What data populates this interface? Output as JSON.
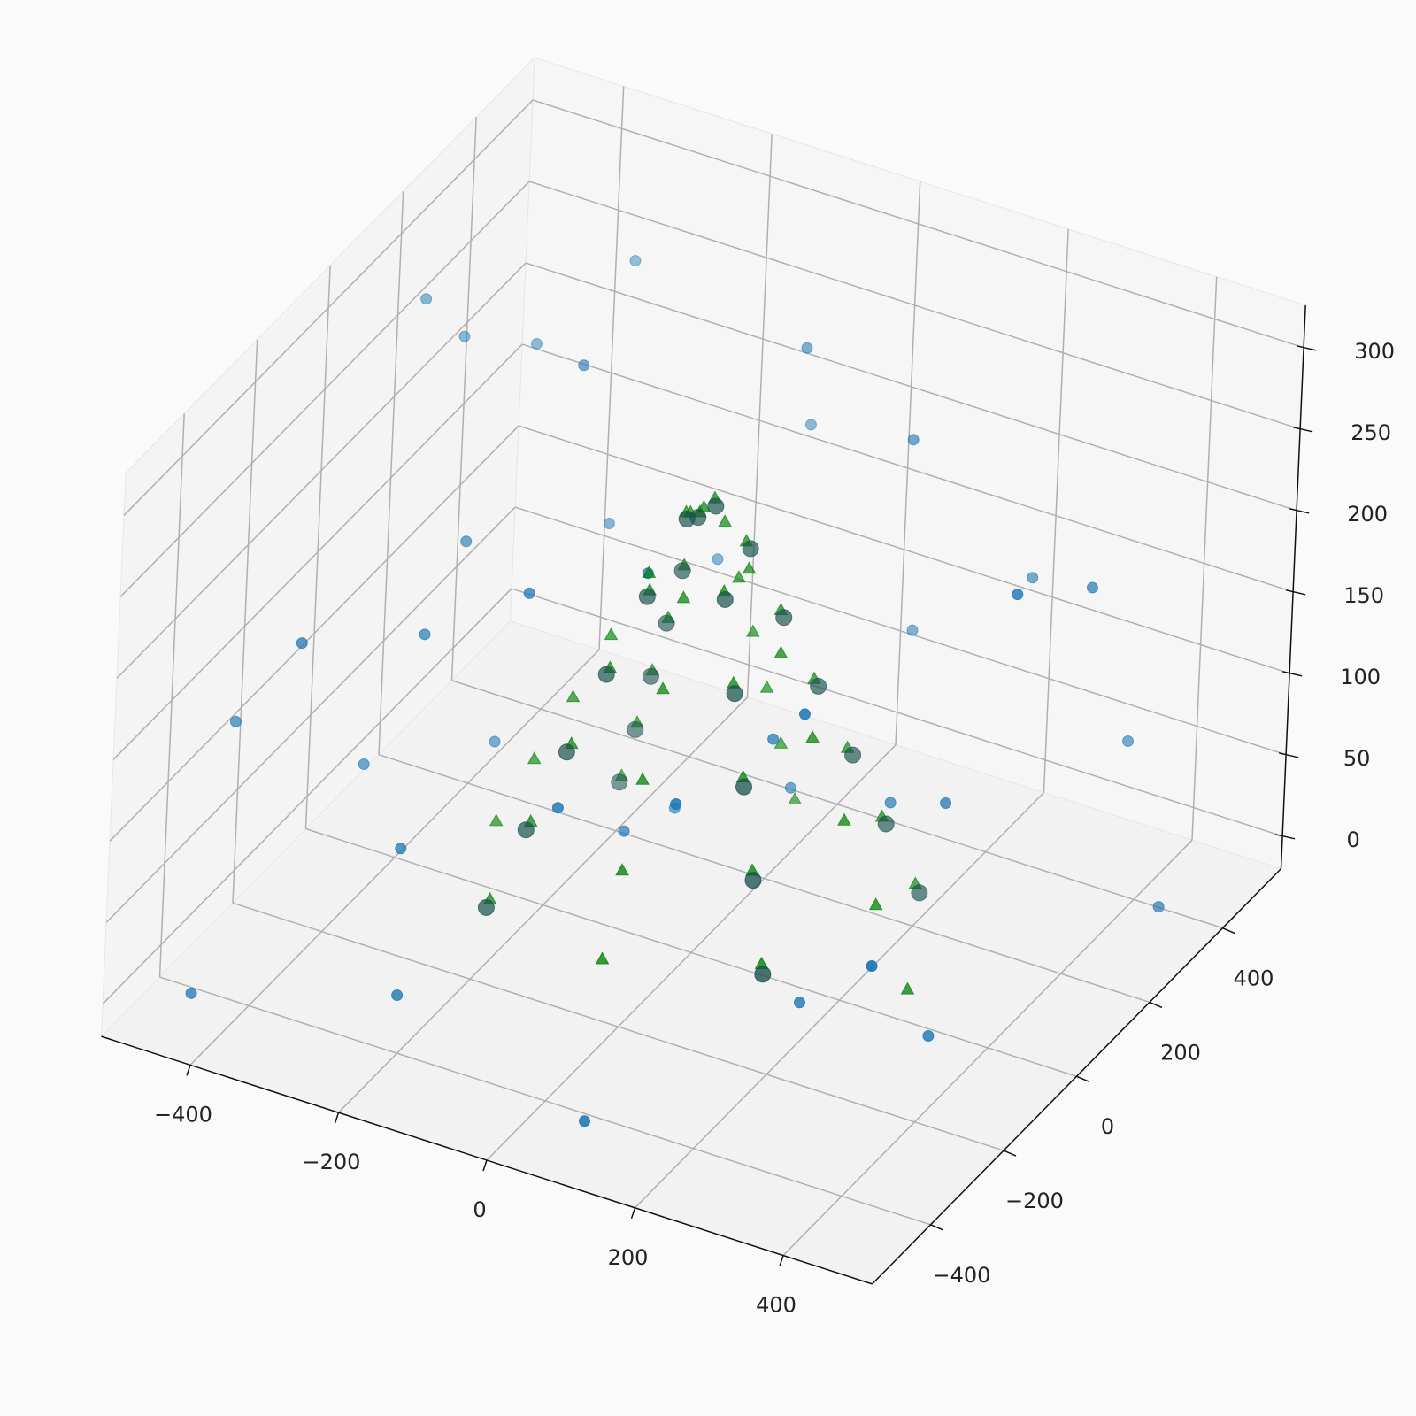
{
  "chart_data": {
    "type": "scatter3d",
    "xlim": [
      -520,
      520
    ],
    "ylim": [
      -560,
      560
    ],
    "zlim": [
      -20,
      326
    ],
    "xticks": [
      {
        "value": -400,
        "label": "−400"
      },
      {
        "value": -200,
        "label": "−200"
      },
      0,
      200,
      400
    ],
    "yticks": [
      {
        "value": -400,
        "label": "−400"
      },
      {
        "value": -200,
        "label": "−200"
      },
      0,
      200,
      400
    ],
    "zticks": [
      0,
      50,
      100,
      150,
      200,
      250,
      300
    ],
    "grid": true,
    "series": [
      {
        "marker": "o",
        "size": 6,
        "color": "#1f77b4",
        "x": [
          -480,
          -460,
          -430,
          -400,
          -380,
          -350,
          -320,
          -300,
          -280,
          -250,
          -230,
          -200,
          -180,
          -150,
          -120,
          -100,
          -80,
          -50,
          -20,
          0,
          30,
          60,
          90,
          120,
          150,
          180,
          210,
          240,
          270,
          300,
          330,
          360,
          390,
          420,
          450,
          480,
          -440,
          100,
          460,
          -300
        ],
        "y": [
          -300,
          150,
          200,
          -100,
          300,
          -400,
          100,
          400,
          -200,
          250,
          -350,
          50,
          -450,
          350,
          -250,
          150,
          450,
          -100,
          300,
          -400,
          200,
          -300,
          400,
          -50,
          250,
          -450,
          100,
          -200,
          350,
          -350,
          0,
          450,
          -150,
          200,
          -450,
          300,
          -480,
          -500,
          -100,
          -50
        ],
        "z": [
          120,
          280,
          250,
          60,
          230,
          210,
          40,
          270,
          180,
          150,
          90,
          300,
          30,
          120,
          240,
          20,
          190,
          70,
          280,
          160,
          40,
          290,
          100,
          140,
          260,
          200,
          80,
          30,
          170,
          250,
          120,
          60,
          20,
          220,
          140,
          10,
          0,
          5,
          290,
          200
        ]
      },
      {
        "marker": "^",
        "size": 7,
        "color": "#008000",
        "x": [
          290,
          201,
          0,
          -192,
          -267,
          -185,
          0,
          176,
          243,
          168,
          0,
          -159,
          -220,
          -151,
          0,
          143,
          196,
          134,
          0,
          -127,
          -172,
          -117,
          0,
          110,
          149,
          101,
          0,
          -93,
          -125,
          -85,
          0,
          76,
          102,
          68,
          0,
          -59,
          -78,
          -52,
          0,
          43,
          55,
          34,
          0,
          -26,
          -32,
          -18,
          0,
          10
        ],
        "y": [
          0,
          201,
          278,
          192,
          0,
          -185,
          -254,
          -176,
          0,
          168,
          231,
          159,
          0,
          -151,
          -208,
          -143,
          0,
          134,
          184,
          127,
          0,
          -117,
          -161,
          -110,
          0,
          101,
          137,
          93,
          0,
          -85,
          -114,
          -76,
          0,
          68,
          90,
          59,
          0,
          -52,
          -66,
          -43,
          0,
          34,
          43,
          26,
          0,
          -18,
          -19,
          -10
        ],
        "z": [
          0,
          6,
          11,
          17,
          22,
          28,
          34,
          39,
          45,
          50,
          56,
          62,
          67,
          73,
          78,
          84,
          90,
          95,
          101,
          106,
          112,
          118,
          123,
          129,
          134,
          140,
          146,
          151,
          157,
          162,
          168,
          174,
          179,
          185,
          190,
          196,
          202,
          207,
          213,
          218,
          224,
          230,
          235,
          241,
          246,
          252,
          258,
          263
        ]
      },
      {
        "marker": "o",
        "size": 9,
        "color": "#17504c",
        "x": [
          205,
          -197,
          -188,
          180,
          172,
          -163,
          -155,
          146,
          139,
          -130,
          -121,
          113,
          105,
          -97,
          -88,
          80,
          71,
          -63,
          -54,
          46,
          38,
          -30,
          -21,
          13
        ],
        "y": [
          205,
          197,
          -188,
          -180,
          172,
          163,
          -155,
          -146,
          139,
          130,
          -121,
          -113,
          105,
          97,
          -88,
          -80,
          71,
          63,
          -54,
          -46,
          38,
          30,
          -21,
          -13
        ],
        "z": [
          0,
          11,
          23,
          34,
          45,
          56,
          68,
          79,
          90,
          101,
          113,
          124,
          135,
          146,
          158,
          169,
          180,
          191,
          203,
          214,
          225,
          236,
          248,
          259
        ]
      }
    ]
  }
}
